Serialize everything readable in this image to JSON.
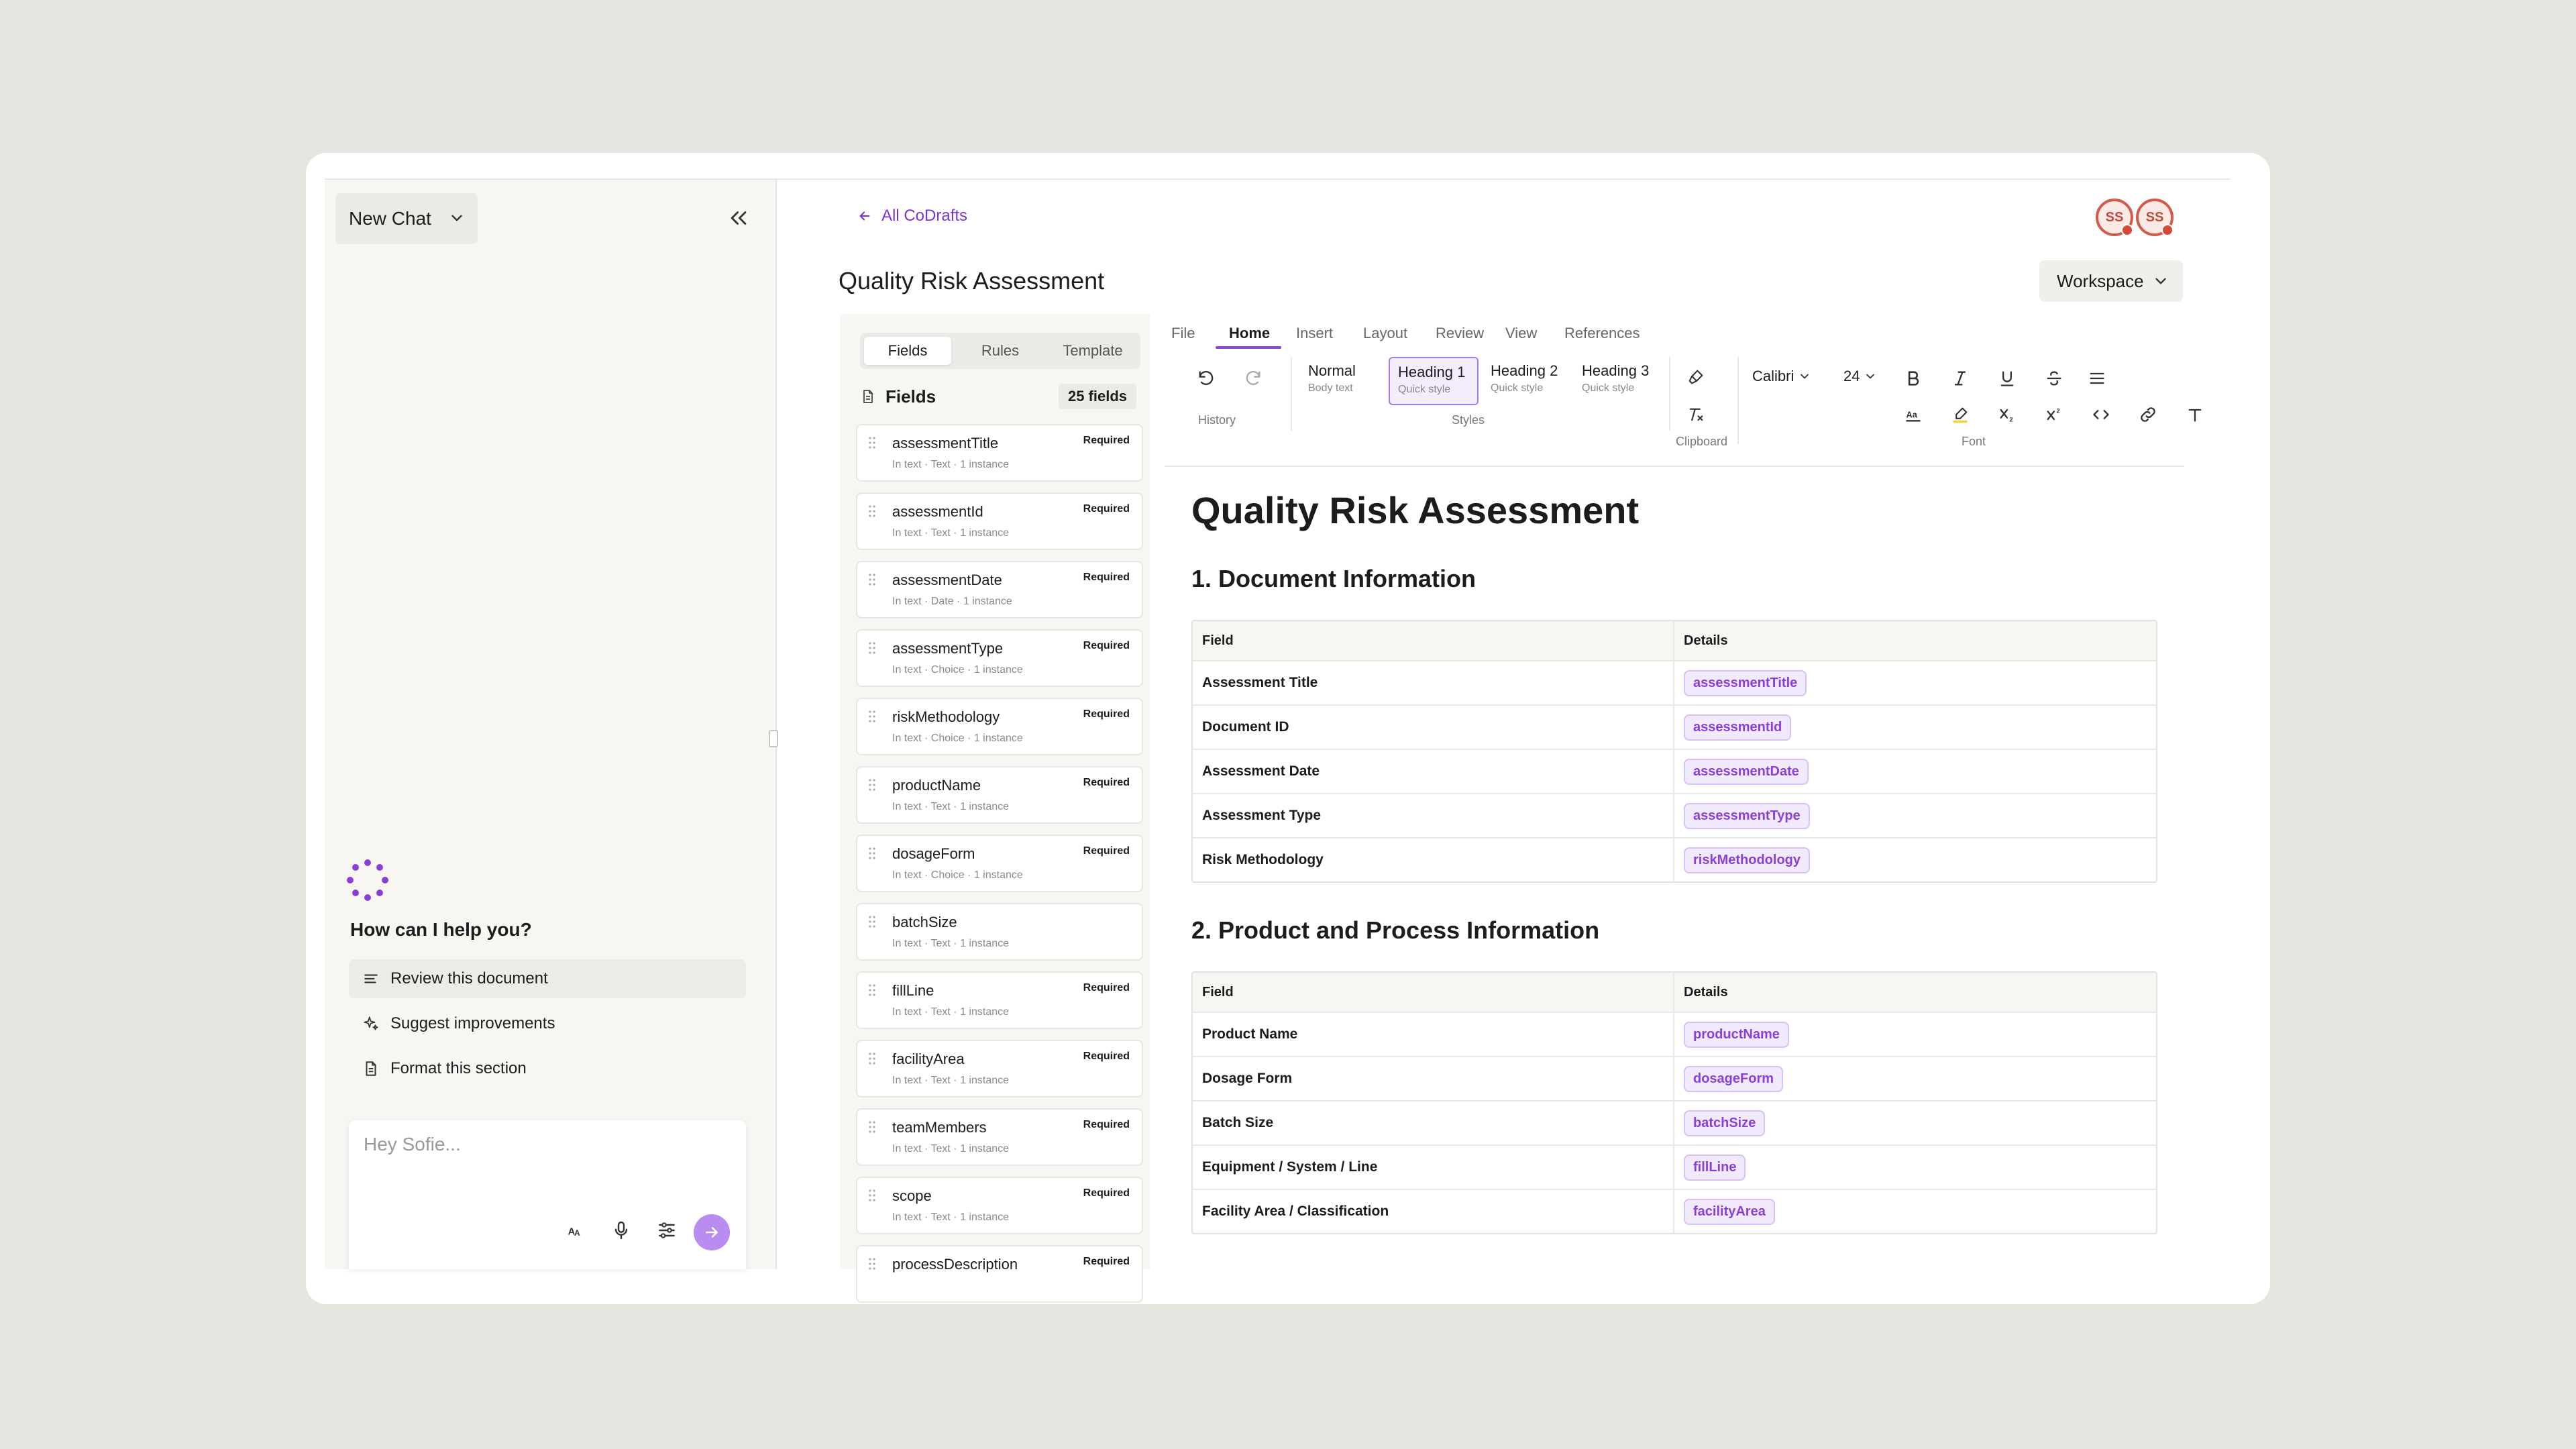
{
  "chat": {
    "new_chat_label": "New Chat",
    "help_title": "How can I help you?",
    "suggestions": [
      "Review this document",
      "Suggest improvements",
      "Format this section"
    ],
    "input_placeholder": "Hey Sofie..."
  },
  "header": {
    "back_link": "All CoDrafts",
    "avatars": [
      "SS",
      "SS"
    ],
    "doc_title": "Quality Risk Assessment",
    "workspace_label": "Workspace"
  },
  "fields_panel": {
    "tabs": [
      "Fields",
      "Rules",
      "Template"
    ],
    "active_tab": "Fields",
    "title": "Fields",
    "count": "25 fields",
    "items": [
      {
        "name": "assessmentTitle",
        "meta": "In text  ·  Text  ·  1 instance",
        "badge": "Required"
      },
      {
        "name": "assessmentId",
        "meta": "In text  ·  Text  ·  1 instance",
        "badge": "Required"
      },
      {
        "name": "assessmentDate",
        "meta": "In text  ·  Date  ·  1 instance",
        "badge": "Required"
      },
      {
        "name": "assessmentType",
        "meta": "In text  ·  Choice  ·  1 instance",
        "badge": "Required"
      },
      {
        "name": "riskMethodology",
        "meta": "In text  ·  Choice  ·  1 instance",
        "badge": "Required"
      },
      {
        "name": "productName",
        "meta": "In text  ·  Text  ·  1 instance",
        "badge": "Required"
      },
      {
        "name": "dosageForm",
        "meta": "In text  ·  Choice  ·  1 instance",
        "badge": "Required"
      },
      {
        "name": "batchSize",
        "meta": "In text  ·  Text  ·  1 instance",
        "badge": ""
      },
      {
        "name": "fillLine",
        "meta": "In text  ·  Text  ·  1 instance",
        "badge": "Required"
      },
      {
        "name": "facilityArea",
        "meta": "In text  ·  Text  ·  1 instance",
        "badge": "Required"
      },
      {
        "name": "teamMembers",
        "meta": "In text  ·  Text  ·  1 instance",
        "badge": "Required"
      },
      {
        "name": "scope",
        "meta": "In text  ·  Text  ·  1 instance",
        "badge": "Required"
      },
      {
        "name": "processDescription",
        "meta": "",
        "badge": "Required"
      }
    ]
  },
  "ribbon": {
    "menu_tabs": [
      "File",
      "Home",
      "Insert",
      "Layout",
      "Review",
      "View",
      "References"
    ],
    "active_menu": "Home",
    "groups": {
      "history": "History",
      "styles": "Styles",
      "clipboard": "Clipboard",
      "font": "Font"
    },
    "styles": [
      {
        "name": "Normal",
        "sub": "Body text"
      },
      {
        "name": "Heading 1",
        "sub": "Quick style"
      },
      {
        "name": "Heading 2",
        "sub": "Quick style"
      },
      {
        "name": "Heading 3",
        "sub": "Quick style"
      }
    ],
    "font_family": "Calibri",
    "font_size": "24"
  },
  "document": {
    "title": "Quality Risk Assessment",
    "section1": {
      "heading": "1. Document Information",
      "col_field": "Field",
      "col_details": "Details",
      "rows": [
        {
          "field": "Assessment Title",
          "value": "assessmentTitle"
        },
        {
          "field": "Document ID",
          "value": "assessmentId"
        },
        {
          "field": "Assessment Date",
          "value": "assessmentDate"
        },
        {
          "field": "Assessment Type",
          "value": "assessmentType"
        },
        {
          "field": "Risk Methodology",
          "value": "riskMethodology"
        }
      ]
    },
    "section2": {
      "heading": "2. Product and Process Information",
      "col_field": "Field",
      "col_details": "Details",
      "rows": [
        {
          "field": "Product Name",
          "value": "productName"
        },
        {
          "field": "Dosage Form",
          "value": "dosageForm"
        },
        {
          "field": "Batch Size",
          "value": "batchSize"
        },
        {
          "field": "Equipment / System / Line",
          "value": "fillLine"
        },
        {
          "field": "Facility Area / Classification",
          "value": "facilityArea"
        }
      ]
    }
  },
  "colors": {
    "accent": "#8a3fd9",
    "chip_bg": "#f1e9fc",
    "send": "#b98cf0",
    "avatar": "#d35a4a"
  }
}
